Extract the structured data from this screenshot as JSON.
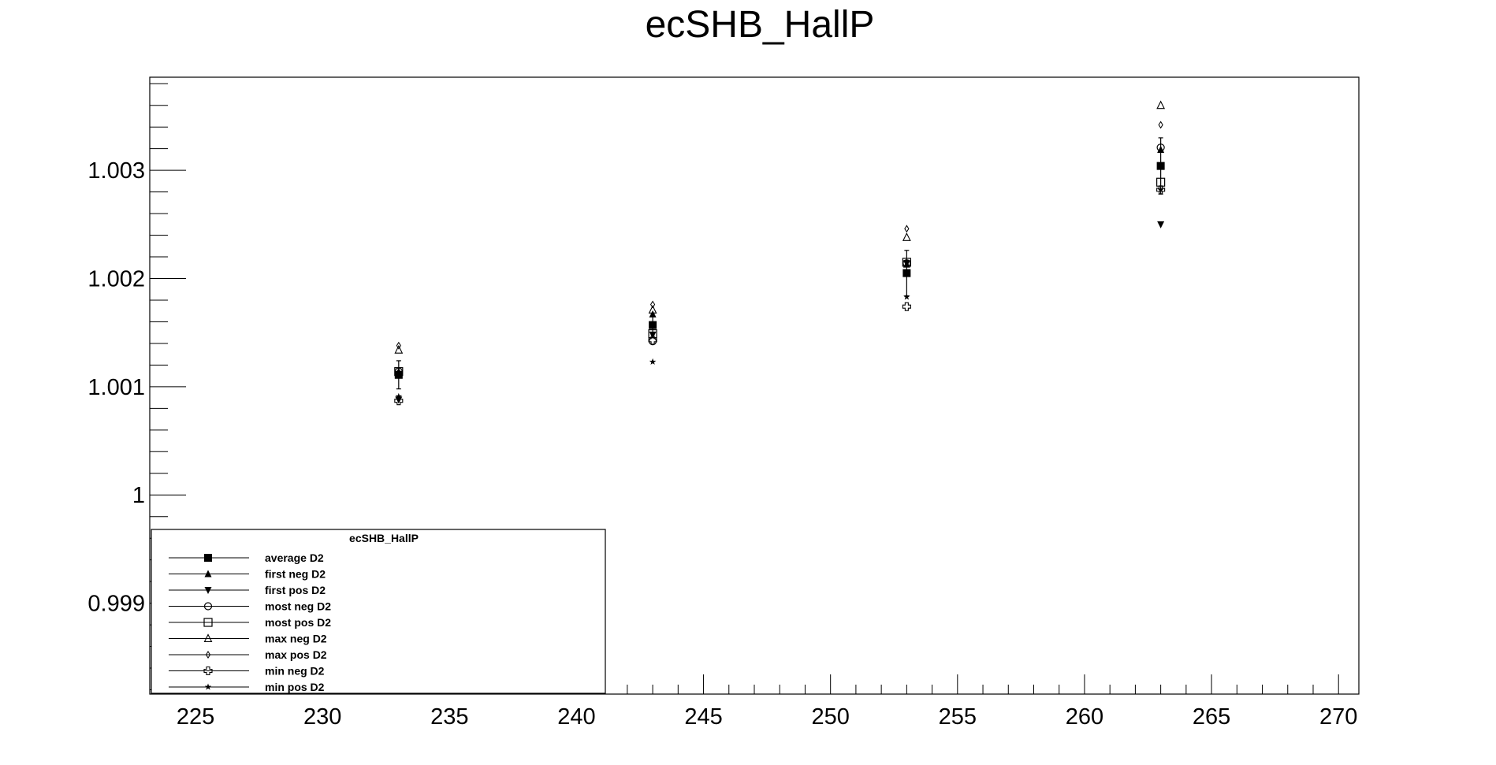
{
  "chart_data": {
    "type": "scatter",
    "title": "ecSHB_HallP",
    "xlabel": "",
    "ylabel": "",
    "xlim": [
      223.2,
      270.8
    ],
    "ylim": [
      0.99816,
      1.00386
    ],
    "x_ticks": [
      225,
      230,
      235,
      240,
      245,
      250,
      255,
      260,
      265,
      270
    ],
    "x_tick_labels": [
      "225",
      "230",
      "235",
      "240",
      "245",
      "250",
      "255",
      "260",
      "265",
      "270"
    ],
    "y_ticks": [
      0.999,
      1,
      1.001,
      1.002,
      1.003
    ],
    "y_tick_labels": [
      "0.999",
      "1",
      "1.001",
      "1.002",
      "1.003"
    ],
    "grid": false,
    "legend": {
      "title": "ecSHB_HallP",
      "placement": "bottom-left"
    },
    "series": [
      {
        "name": "average D2",
        "marker": "filled-square",
        "x": [
          233,
          243,
          253,
          263
        ],
        "y": [
          1.00111,
          1.00157,
          1.00205,
          1.00304
        ],
        "yerr": [
          0.00013,
          8e-05,
          0.00021,
          0.00026
        ]
      },
      {
        "name": "first neg D2",
        "marker": "filled-triangle-up",
        "x": [
          233,
          243,
          253,
          263
        ],
        "y": [
          1.00114,
          1.00167,
          1.00213,
          1.00319
        ]
      },
      {
        "name": "first pos D2",
        "marker": "filled-triangle-down",
        "x": [
          233,
          243,
          253,
          263
        ],
        "y": [
          1.00088,
          1.00148,
          1.00214,
          1.0025
        ]
      },
      {
        "name": "most neg D2",
        "marker": "open-circle",
        "x": [
          233,
          243,
          253,
          263
        ],
        "y": [
          1.00114,
          1.00142,
          1.00214,
          1.00321
        ]
      },
      {
        "name": "most pos D2",
        "marker": "open-square",
        "x": [
          233,
          243,
          253,
          263
        ],
        "y": [
          1.00114,
          1.00149,
          1.00215,
          1.00289
        ]
      },
      {
        "name": "max neg D2",
        "marker": "open-triangle-up",
        "x": [
          233,
          243,
          253,
          263
        ],
        "y": [
          1.00134,
          1.00171,
          1.00238,
          1.0036
        ]
      },
      {
        "name": "max pos D2",
        "marker": "open-diamond",
        "x": [
          233,
          243,
          253,
          263
        ],
        "y": [
          1.00138,
          1.00176,
          1.00246,
          1.00342
        ]
      },
      {
        "name": "min neg D2",
        "marker": "open-cross",
        "x": [
          233,
          243,
          253,
          263
        ],
        "y": [
          1.00087,
          1.00143,
          1.00174,
          1.00282
        ]
      },
      {
        "name": "min pos D2",
        "marker": "star",
        "x": [
          233,
          243,
          253,
          263
        ],
        "y": [
          1.00091,
          1.00123,
          1.00183,
          1.00282
        ]
      }
    ]
  }
}
